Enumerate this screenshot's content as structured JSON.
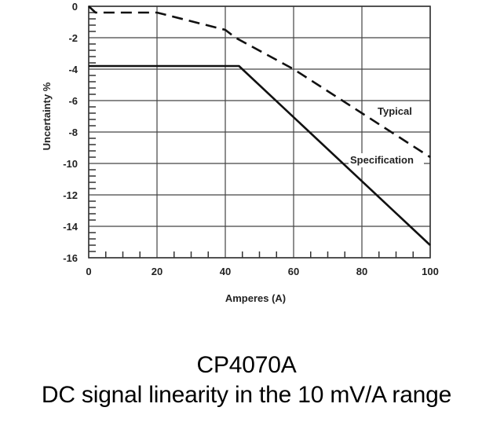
{
  "chart_data": {
    "type": "line",
    "xlabel": "Amperes (A)",
    "ylabel": "Uncertainty %",
    "xlim": [
      0,
      100
    ],
    "ylim": [
      -16,
      0
    ],
    "x_ticks": [
      0,
      20,
      40,
      60,
      80,
      100
    ],
    "y_ticks": [
      0,
      -2,
      -4,
      -6,
      -8,
      -10,
      -12,
      -14,
      -16
    ],
    "grid": true,
    "series": [
      {
        "name": "Typical",
        "style": "dashed",
        "x": [
          0,
          2,
          20,
          40,
          43,
          60,
          80,
          100
        ],
        "y": [
          0,
          -0.4,
          -0.4,
          -1.5,
          -2.0,
          -4.0,
          -6.8,
          -9.6
        ]
      },
      {
        "name": "Specification",
        "style": "solid",
        "x": [
          0,
          44,
          100
        ],
        "y": [
          -3.8,
          -3.8,
          -15.2
        ]
      }
    ]
  },
  "caption": {
    "title": "CP4070A",
    "subtitle": "DC signal linearity in the 10 mV/A range"
  }
}
